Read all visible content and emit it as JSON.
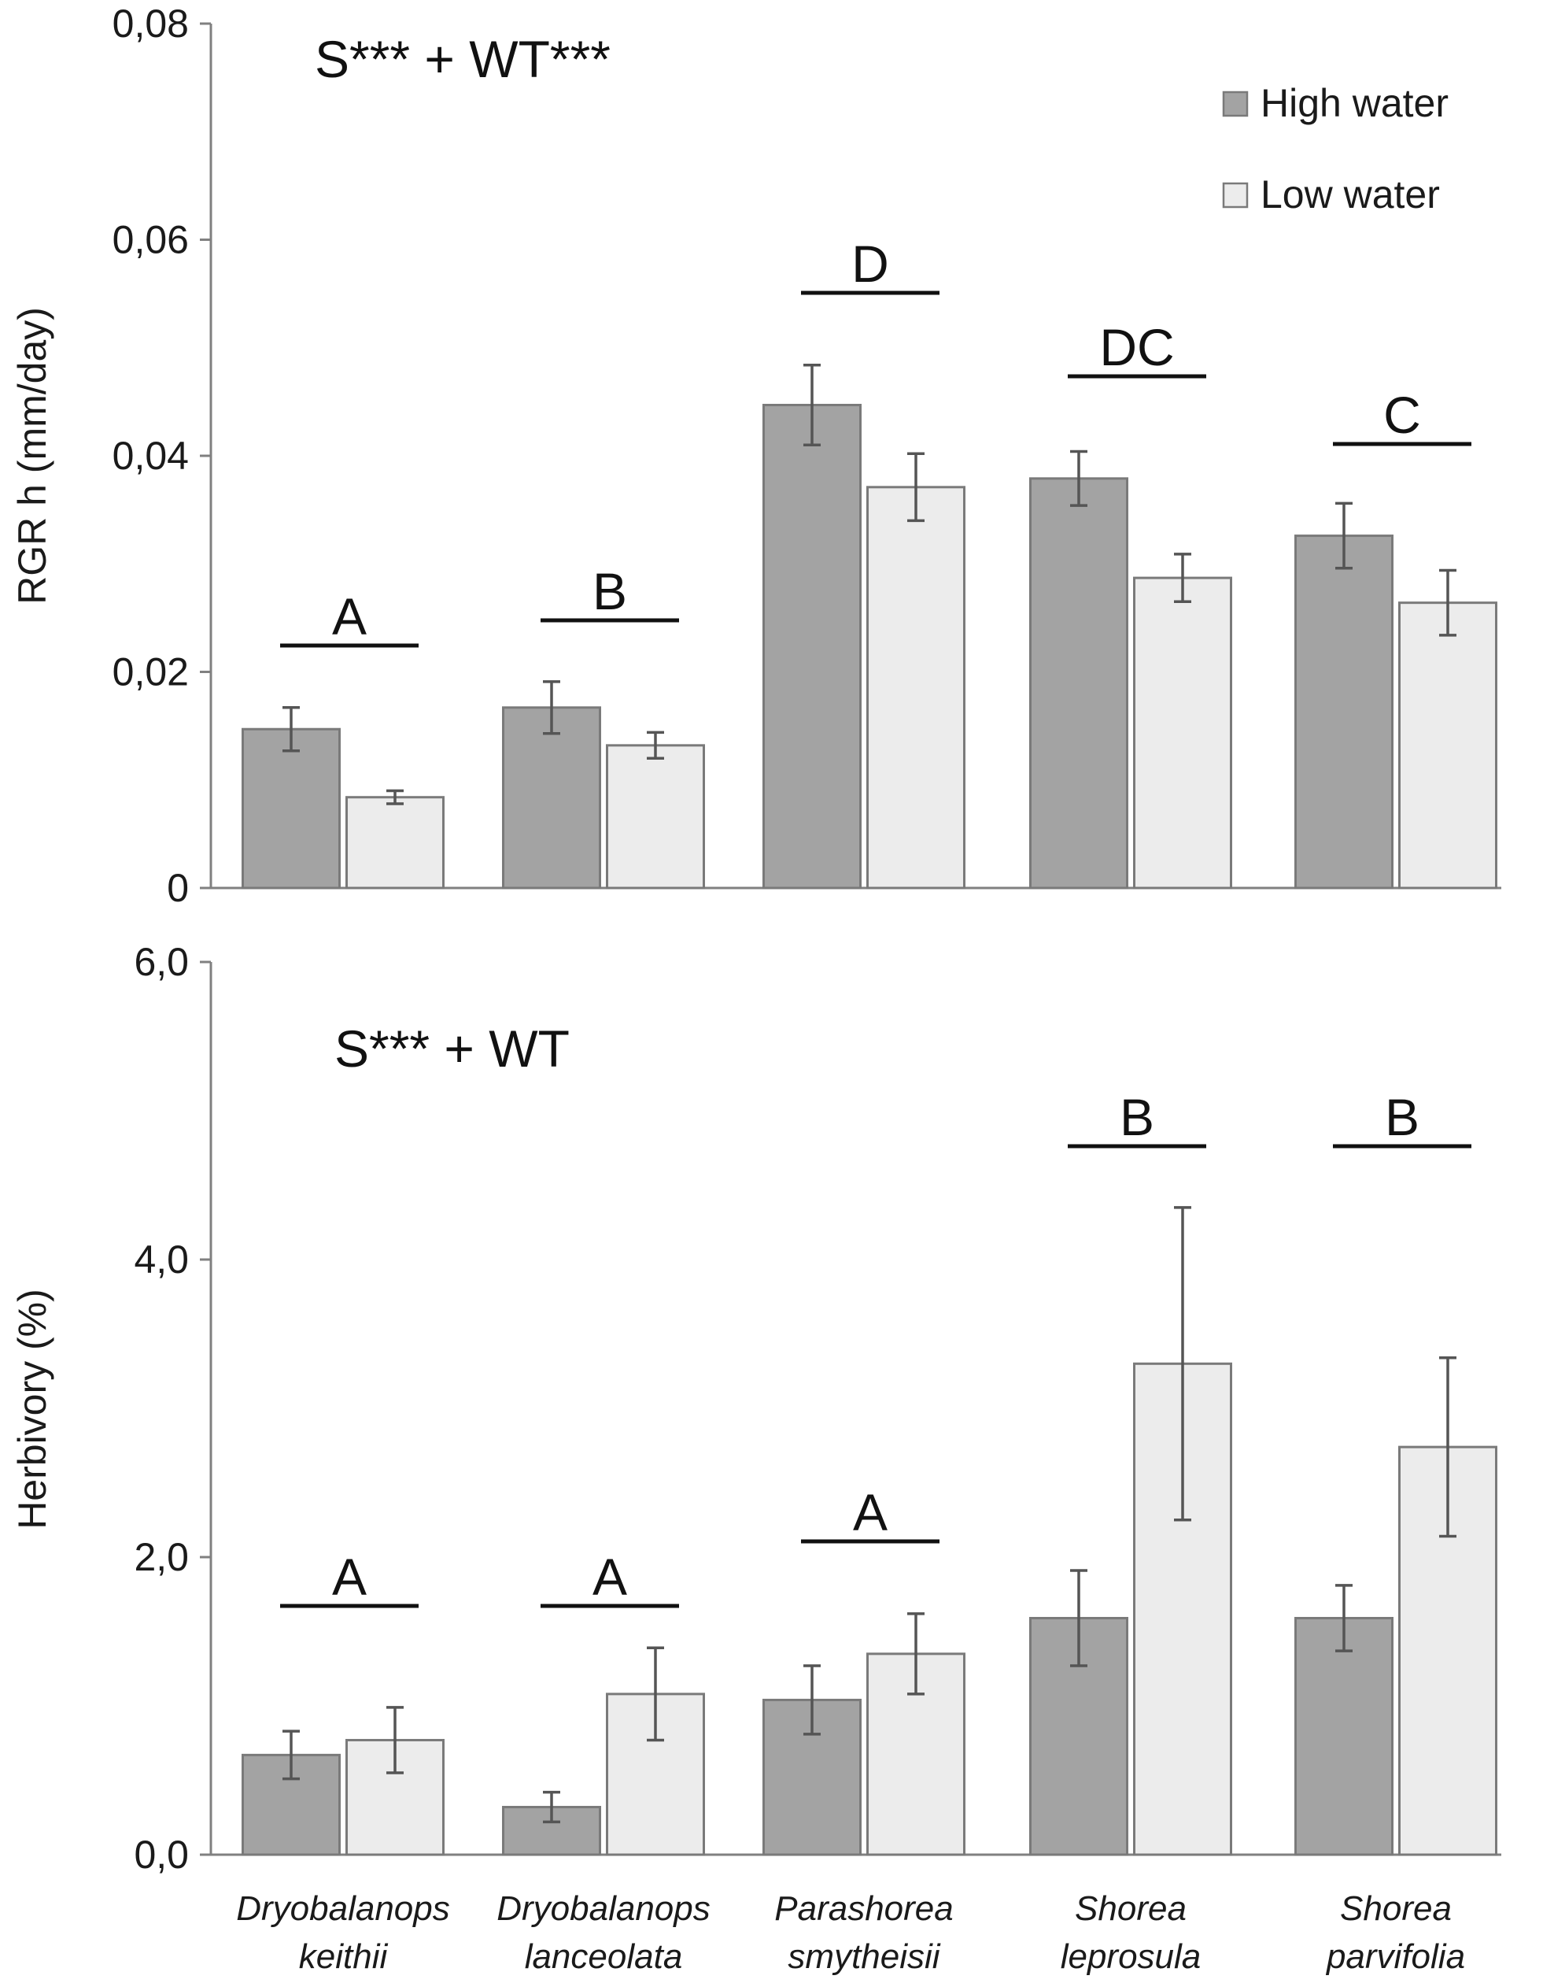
{
  "legend": {
    "entries": [
      "High water",
      "Low water"
    ]
  },
  "colors": {
    "high_water": "#a3a3a3",
    "low_water": "#ececec",
    "bar_stroke": "#7a7a7a",
    "error_bar": "#555555",
    "axis": "#808080"
  },
  "chart_data": [
    {
      "type": "bar",
      "ylabel": "RGR h (mm/day)",
      "annotation": "S*** + WT***",
      "yticks": [
        "0",
        "0,02",
        "0,04",
        "0,06",
        "0,08"
      ],
      "ylim": [
        0,
        0.08
      ],
      "legend_position": "top-right",
      "categories": [
        "Dryobalanops keithii",
        "Dryobalanops lanceolata",
        "Parashorea smytheisii",
        "Shorea leprosula",
        "Shorea parvifolia"
      ],
      "group_letters": [
        "A",
        "B",
        "D",
        "DC",
        "C"
      ],
      "series": [
        {
          "name": "High water",
          "values": [
            0.0147,
            0.0167,
            0.0447,
            0.0379,
            0.0326
          ],
          "errors": [
            0.002,
            0.0024,
            0.0037,
            0.0025,
            0.003
          ]
        },
        {
          "name": "Low water",
          "values": [
            0.0084,
            0.0132,
            0.0371,
            0.0287,
            0.0264
          ],
          "errors": [
            0.0006,
            0.0012,
            0.0031,
            0.0022,
            0.003
          ]
        }
      ]
    },
    {
      "type": "bar",
      "ylabel": "Herbivory (%)",
      "annotation": "S*** + WT",
      "yticks": [
        "0,0",
        "2,0",
        "4,0",
        "6,0"
      ],
      "ylim": [
        0,
        6
      ],
      "categories": [
        "Dryobalanops keithii",
        "Dryobalanops lanceolata",
        "Parashorea smytheisii",
        "Shorea leprosula",
        "Shorea parvifolia"
      ],
      "group_letters": [
        "A",
        "A",
        "A",
        "B",
        "B"
      ],
      "series": [
        {
          "name": "High water",
          "values": [
            0.67,
            0.32,
            1.04,
            1.59,
            1.59
          ],
          "errors": [
            0.16,
            0.1,
            0.23,
            0.32,
            0.22
          ]
        },
        {
          "name": "Low water",
          "values": [
            0.77,
            1.08,
            1.35,
            3.3,
            2.74
          ],
          "errors": [
            0.22,
            0.31,
            0.27,
            1.05,
            0.6
          ]
        }
      ]
    }
  ],
  "category_labels": [
    {
      "line1": "Dryobalanops",
      "line2": "keithii"
    },
    {
      "line1": "Dryobalanops",
      "line2": "lanceolata"
    },
    {
      "line1": "Parashorea",
      "line2": "smytheisii"
    },
    {
      "line1": "Shorea",
      "line2": "leprosula"
    },
    {
      "line1": "Shorea",
      "line2": "parvifolia"
    }
  ]
}
